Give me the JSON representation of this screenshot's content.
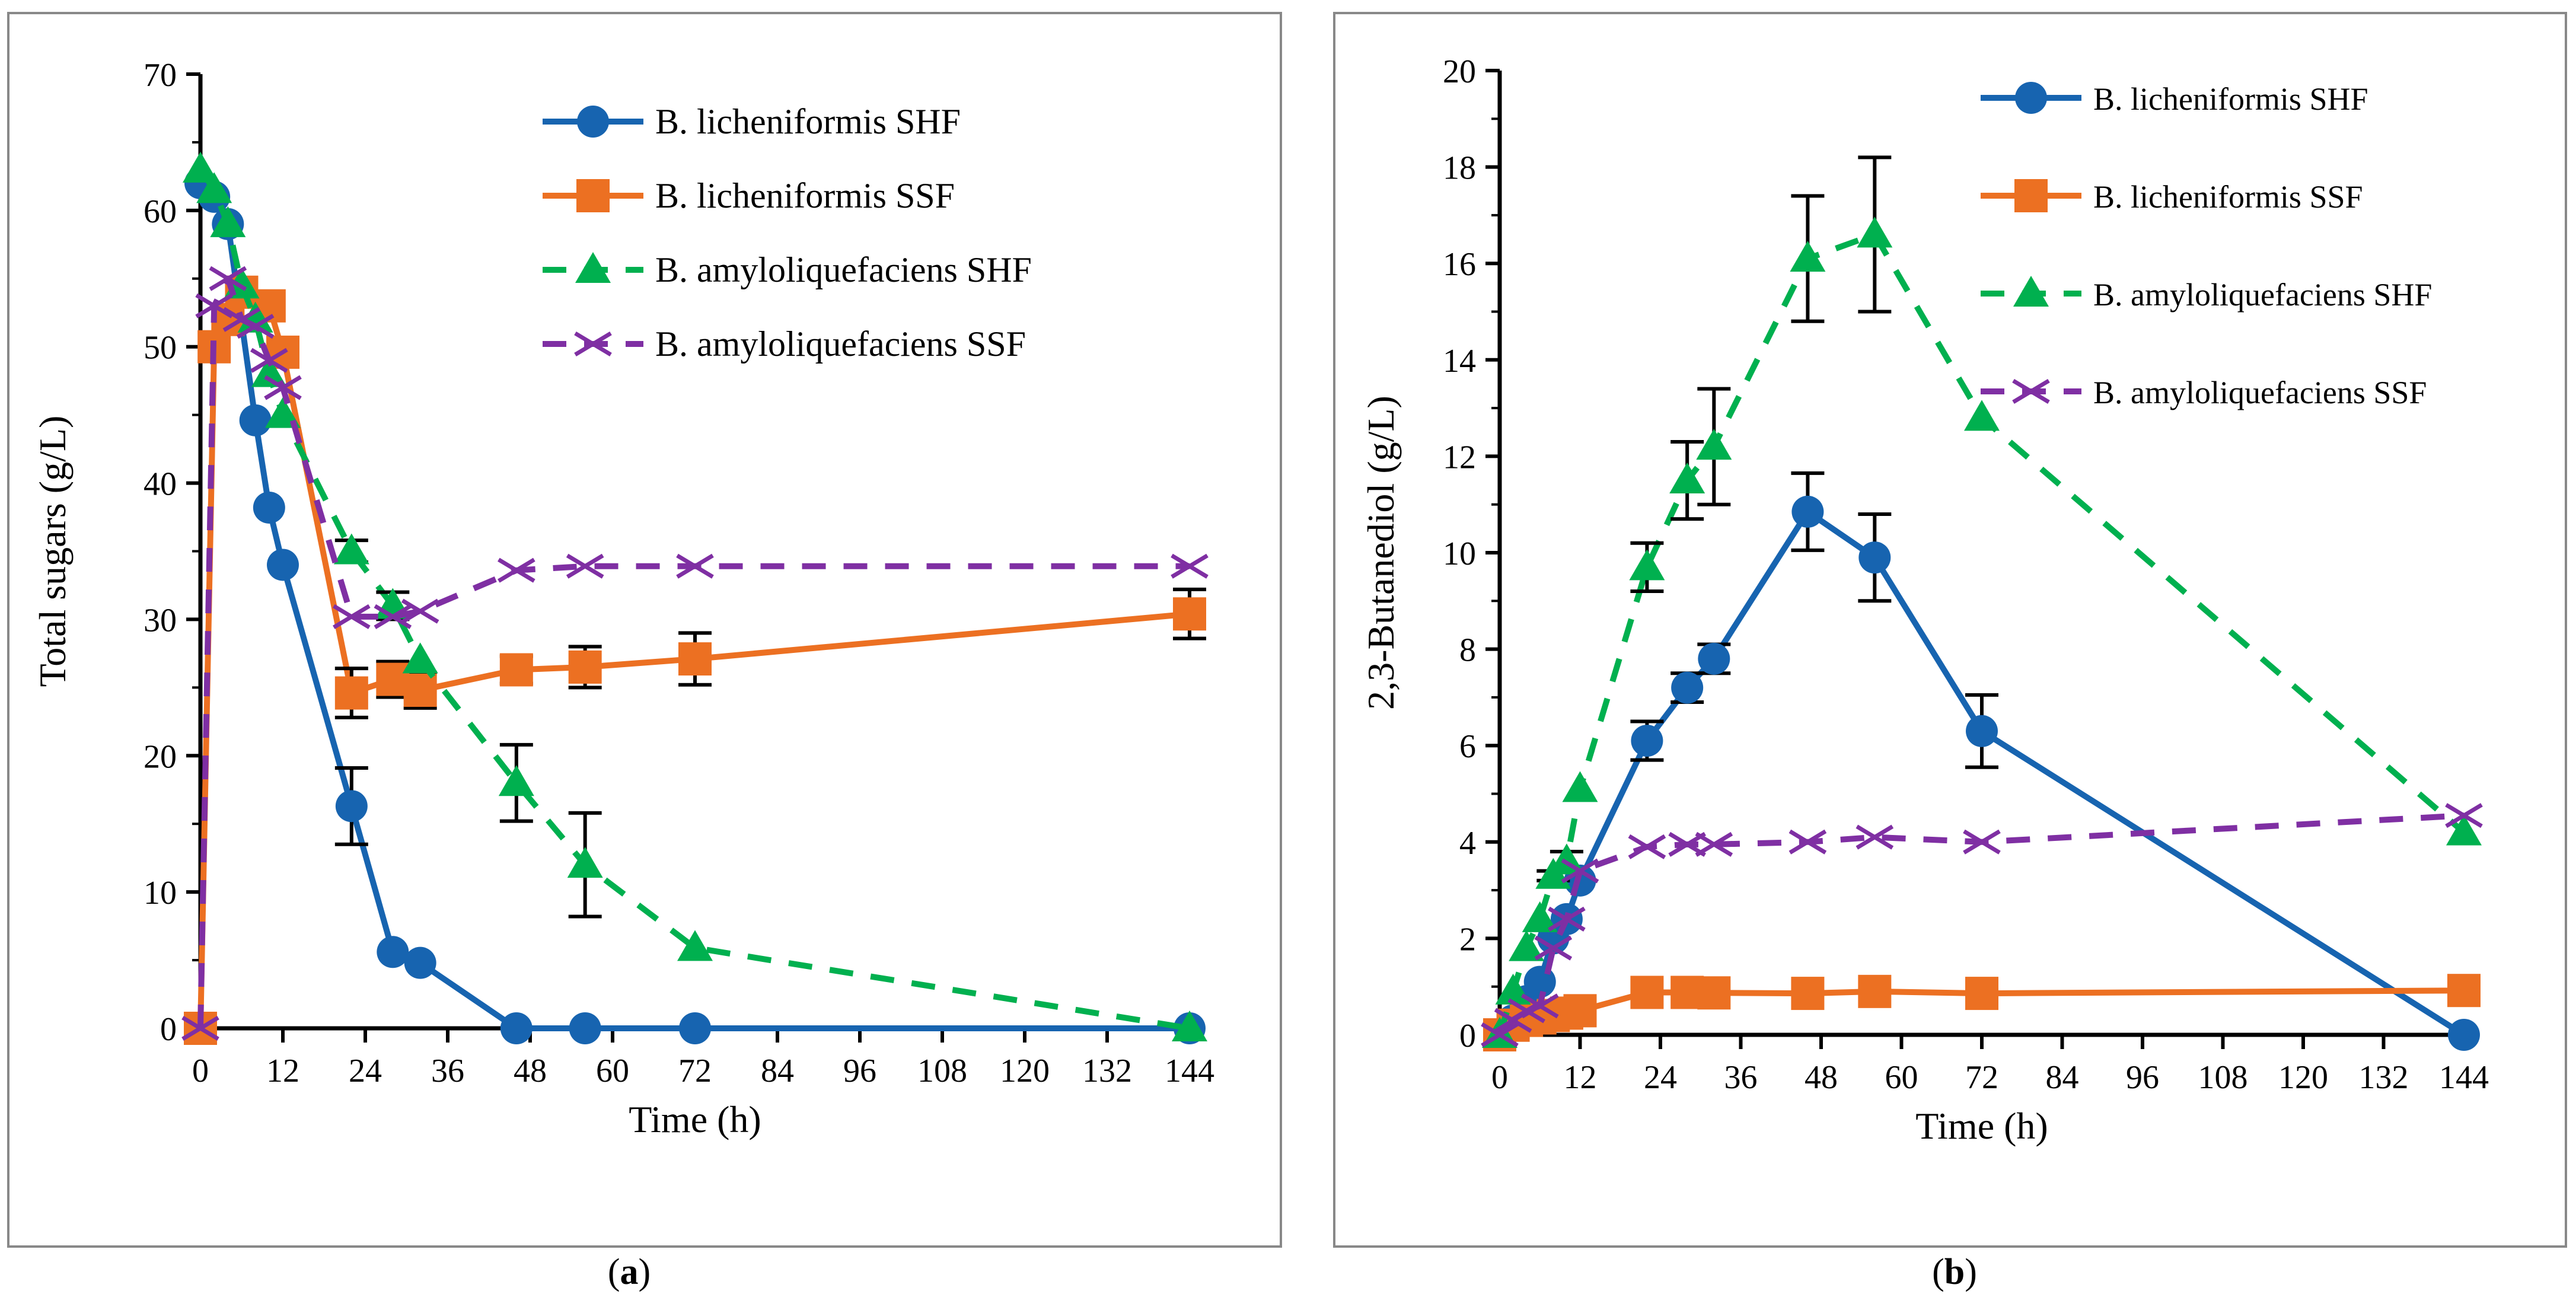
{
  "chart_data": [
    {
      "type": "line",
      "panel_label": "(a)",
      "panel_letter": "a",
      "xlabel": "Time (h)",
      "ylabel": "Total sugars (g/L)",
      "xlim": [
        0,
        144
      ],
      "ylim": [
        0,
        70
      ],
      "xticks": [
        0,
        12,
        24,
        36,
        48,
        60,
        72,
        84,
        96,
        108,
        120,
        132,
        144
      ],
      "yticks": [
        0,
        10,
        20,
        30,
        40,
        50,
        60,
        70
      ],
      "legend": "top-right",
      "series": [
        {
          "name": "B. licheniformis SHF",
          "color": "#1764B0",
          "marker": "circle",
          "dash": false,
          "x": [
            0,
            2,
            4,
            8,
            10,
            12,
            22,
            28,
            32,
            46,
            56,
            72,
            144
          ],
          "y": [
            62,
            61,
            59,
            44.6,
            38.2,
            34,
            16.3,
            5.6,
            4.8,
            0,
            0,
            0,
            0
          ],
          "err": [
            0,
            0,
            0,
            0,
            0,
            0,
            2.8,
            0,
            0,
            0,
            0,
            0,
            0
          ]
        },
        {
          "name": "B. licheniformis SSF",
          "color": "#EC7022",
          "marker": "square",
          "dash": false,
          "x": [
            0,
            2,
            4,
            6,
            10,
            12,
            22,
            28,
            32,
            46,
            56,
            72,
            144
          ],
          "y": [
            0,
            50,
            52,
            54,
            53,
            49.6,
            24.6,
            25.6,
            24.8,
            26.3,
            26.5,
            27.1,
            30.4
          ],
          "err": [
            0,
            0,
            0,
            0,
            0,
            0,
            1.8,
            1.3,
            1.3,
            1.0,
            1.5,
            1.9,
            1.8
          ]
        },
        {
          "name": "B. amyloliquefaciens SHF",
          "color": "#00B04F",
          "marker": "triangle",
          "dash": true,
          "x": [
            0,
            2,
            4,
            6,
            8,
            10,
            12,
            22,
            28,
            32,
            46,
            56,
            72,
            144
          ],
          "y": [
            63,
            61.5,
            59,
            54.5,
            52,
            48,
            45,
            35,
            31,
            27,
            18,
            12,
            5.9,
            0
          ],
          "err": [
            0,
            0,
            0,
            0,
            0,
            0,
            0,
            0.8,
            1,
            0,
            2.8,
            3.8,
            0,
            0
          ]
        },
        {
          "name": "B. amyloliquefaciens SSF",
          "color": "#7F2FA3",
          "marker": "x",
          "dash": true,
          "x": [
            0,
            2,
            4,
            6,
            8,
            10,
            12,
            22,
            28,
            32,
            46,
            56,
            72,
            144
          ],
          "y": [
            0,
            53,
            55,
            52,
            51.5,
            49,
            47,
            30.2,
            30.2,
            30.6,
            33.6,
            33.9,
            33.9,
            33.9
          ],
          "err": [
            0,
            0,
            0,
            0,
            0,
            0,
            0,
            0,
            0,
            0,
            0,
            0,
            0,
            0
          ]
        }
      ]
    },
    {
      "type": "line",
      "panel_label": "(b)",
      "panel_letter": "b",
      "xlabel": "Time (h)",
      "ylabel": "2,3-Butanediol (g/L)",
      "xlim": [
        0,
        144
      ],
      "ylim": [
        0,
        20
      ],
      "xticks": [
        0,
        12,
        24,
        36,
        48,
        60,
        72,
        84,
        96,
        108,
        120,
        132,
        144
      ],
      "yticks": [
        0,
        2,
        4,
        6,
        8,
        10,
        12,
        14,
        16,
        18,
        20
      ],
      "legend": "top-right",
      "series": [
        {
          "name": "B. licheniformis SHF",
          "color": "#1764B0",
          "marker": "circle",
          "dash": false,
          "x": [
            0,
            2,
            4,
            6,
            8,
            10,
            12,
            22,
            28,
            32,
            46,
            56,
            72,
            144
          ],
          "y": [
            0,
            0.3,
            0.7,
            1.1,
            2.0,
            2.4,
            3.2,
            6.1,
            7.2,
            7.8,
            10.85,
            9.9,
            6.3,
            0
          ],
          "err": [
            0,
            0,
            0,
            0,
            0,
            0,
            0,
            0.4,
            0.3,
            0.3,
            0.8,
            0.9,
            0.75,
            0
          ]
        },
        {
          "name": "B. licheniformis SSF",
          "color": "#EC7022",
          "marker": "square",
          "dash": false,
          "x": [
            0,
            2,
            4,
            6,
            8,
            10,
            12,
            22,
            28,
            32,
            46,
            56,
            72,
            144
          ],
          "y": [
            0,
            0.2,
            0.3,
            0.35,
            0.4,
            0.45,
            0.5,
            0.88,
            0.88,
            0.87,
            0.86,
            0.9,
            0.86,
            0.92
          ],
          "err": [
            0,
            0,
            0,
            0,
            0,
            0,
            0,
            0,
            0,
            0,
            0,
            0,
            0,
            0
          ]
        },
        {
          "name": "B. amyloliquefaciens SHF",
          "color": "#00B04F",
          "marker": "triangle",
          "dash": true,
          "x": [
            0,
            2,
            4,
            6,
            8,
            10,
            12,
            22,
            28,
            32,
            46,
            56,
            72,
            144
          ],
          "y": [
            0,
            0.9,
            1.8,
            2.4,
            3.3,
            3.6,
            5.1,
            9.7,
            11.5,
            12.2,
            16.1,
            16.6,
            12.8,
            4.2
          ],
          "err": [
            0,
            0,
            0,
            0,
            0.1,
            0.2,
            0,
            0.5,
            0.8,
            1.2,
            1.3,
            1.6,
            0,
            0
          ]
        },
        {
          "name": "B. amyloliquefaciens SSF",
          "color": "#7F2FA3",
          "marker": "x",
          "dash": true,
          "x": [
            0,
            2,
            4,
            6,
            8,
            10,
            12,
            22,
            28,
            32,
            46,
            56,
            72,
            144
          ],
          "y": [
            0,
            0.3,
            0.5,
            0.6,
            1.8,
            2.4,
            3.4,
            3.9,
            3.95,
            3.95,
            4.0,
            4.1,
            4.0,
            4.55
          ],
          "err": [
            0,
            0,
            0,
            0,
            0,
            0,
            0,
            0,
            0,
            0,
            0,
            0,
            0,
            0
          ]
        }
      ]
    }
  ]
}
